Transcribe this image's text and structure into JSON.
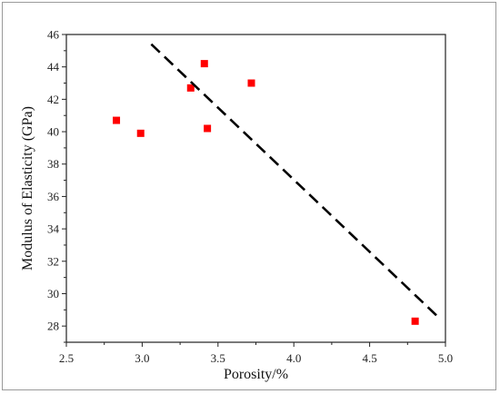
{
  "chart_data": {
    "type": "scatter",
    "title": "",
    "xlabel": "Porosity/%",
    "ylabel": "Modulus of Elasticity (GPa)",
    "xlim": [
      2.5,
      5.0
    ],
    "ylim": [
      27,
      46
    ],
    "x_ticks": [
      "2.5",
      "3.0",
      "3.5",
      "4.0",
      "4.5",
      "5.0"
    ],
    "y_ticks": [
      "28",
      "30",
      "32",
      "34",
      "36",
      "38",
      "40",
      "42",
      "44",
      "46"
    ],
    "grid": false,
    "legend": "none",
    "series": [
      {
        "type": "scatter",
        "marker": "square",
        "color": "#ff0000",
        "points": [
          {
            "x": 2.83,
            "y": 40.7
          },
          {
            "x": 2.99,
            "y": 39.9
          },
          {
            "x": 3.32,
            "y": 42.7
          },
          {
            "x": 3.41,
            "y": 44.2
          },
          {
            "x": 3.43,
            "y": 40.2
          },
          {
            "x": 3.72,
            "y": 43.0
          },
          {
            "x": 4.8,
            "y": 28.3
          }
        ]
      },
      {
        "type": "line",
        "style": "dashed",
        "color": "#000000",
        "points": [
          {
            "x": 3.06,
            "y": 45.4
          },
          {
            "x": 4.97,
            "y": 28.4
          }
        ]
      }
    ]
  }
}
